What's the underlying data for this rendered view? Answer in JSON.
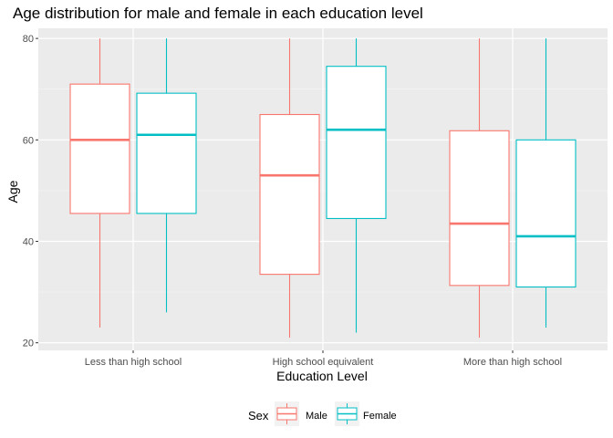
{
  "chart_data": {
    "type": "boxplot",
    "title": "Age distribution for male and female in each education level",
    "xlabel": "Education Level",
    "ylabel": "Age",
    "ylim": [
      18.5,
      82
    ],
    "yticks": [
      20,
      40,
      60,
      80
    ],
    "grid": true,
    "legend_position": "bottom",
    "legend_title": "Sex",
    "categories": [
      "Less than high school",
      "High school equivalent",
      "More than high school"
    ],
    "series": [
      {
        "name": "Male",
        "color": "#F8766D",
        "boxes": [
          {
            "min": 23,
            "q1": 45.5,
            "median": 60,
            "q3": 71,
            "max": 80
          },
          {
            "min": 21,
            "q1": 33.5,
            "median": 53,
            "q3": 65,
            "max": 80
          },
          {
            "min": 21,
            "q1": 31.3,
            "median": 43.5,
            "q3": 61.8,
            "max": 80
          }
        ]
      },
      {
        "name": "Female",
        "color": "#00BFC4",
        "boxes": [
          {
            "min": 26,
            "q1": 45.5,
            "median": 61,
            "q3": 69.2,
            "max": 80
          },
          {
            "min": 22,
            "q1": 44.5,
            "median": 62,
            "q3": 74.5,
            "max": 80
          },
          {
            "min": 23,
            "q1": 31,
            "median": 41,
            "q3": 60,
            "max": 80
          }
        ]
      }
    ]
  }
}
